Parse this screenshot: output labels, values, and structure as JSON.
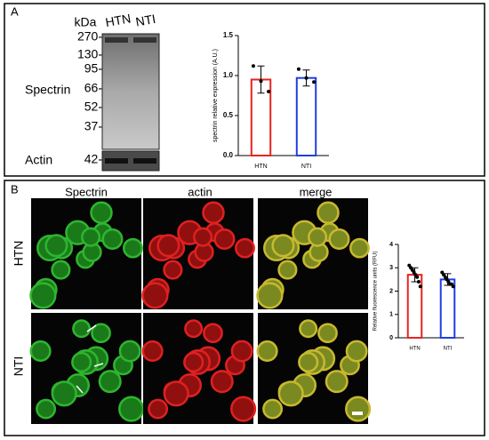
{
  "panel_labels": [
    "A",
    "B"
  ],
  "blot": {
    "unit": "kDa",
    "lanes": [
      "HTN",
      "NTI"
    ],
    "markers": [
      "270-",
      "130-",
      "95-",
      "66-",
      "52-",
      "37-"
    ],
    "actin_marker": "42-",
    "rows": [
      "Spectrin",
      "Actin"
    ]
  },
  "images": {
    "columns": [
      "Spectrin",
      "actin",
      "merge"
    ],
    "rows": [
      "HTN",
      "NTI"
    ]
  },
  "chart_data": [
    {
      "type": "bar",
      "ylabel": "spectrin relative expression (A.U.)",
      "categories": [
        "HTN",
        "NTI"
      ],
      "values": [
        0.95,
        0.97
      ],
      "errors": [
        0.17,
        0.1
      ],
      "points": [
        [
          1.12,
          0.93,
          0.8
        ],
        [
          1.08,
          0.97,
          0.92
        ]
      ],
      "colors": [
        "#e8231f",
        "#1f3fe0"
      ],
      "ylim": [
        0,
        1.5
      ],
      "yticks": [
        {
          "value": 0,
          "label": "0.0"
        },
        0.5,
        {
          "value": 1,
          "label": "1.0"
        },
        1.5
      ]
    },
    {
      "type": "bar",
      "ylabel": "Relative fluorescence units (RFU)",
      "categories": [
        "HTN",
        "NTI"
      ],
      "values": [
        2.7,
        2.5
      ],
      "errors": [
        0.3,
        0.25
      ],
      "points": [
        [
          3.1,
          3.0,
          2.9,
          2.8,
          2.7,
          2.6,
          2.4,
          2.2
        ],
        [
          2.8,
          2.7,
          2.6,
          2.5,
          2.4,
          2.3,
          2.3,
          2.2
        ]
      ],
      "colors": [
        "#e8231f",
        "#1f3fe0"
      ],
      "ylim": [
        0,
        4
      ],
      "yticks": [
        0,
        1,
        2,
        3,
        4
      ]
    }
  ]
}
